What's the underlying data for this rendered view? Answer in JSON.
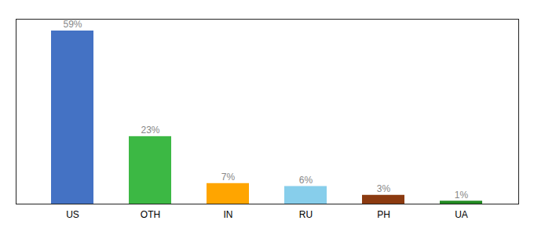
{
  "chart_data": {
    "type": "bar",
    "categories": [
      "US",
      "OTH",
      "IN",
      "RU",
      "PH",
      "UA"
    ],
    "values": [
      59,
      23,
      7,
      6,
      3,
      1
    ],
    "value_labels": [
      "59%",
      "23%",
      "7%",
      "6%",
      "3%",
      "1%"
    ],
    "colors": [
      "#4472C4",
      "#3CB844",
      "#FFA500",
      "#87CEEB",
      "#8B3A10",
      "#228B22"
    ],
    "ylim": [
      0,
      63
    ],
    "yticks": [],
    "data_labels": true,
    "tick_labels": "x"
  }
}
